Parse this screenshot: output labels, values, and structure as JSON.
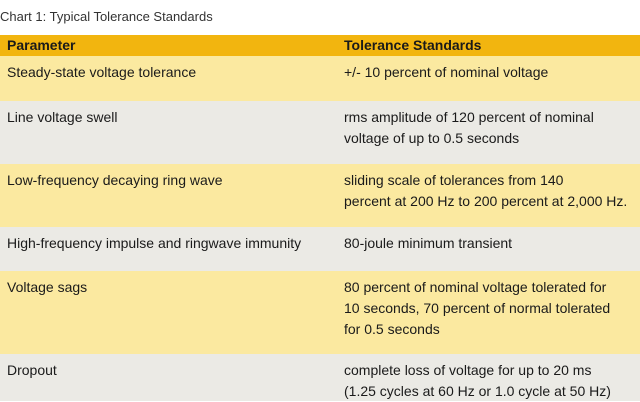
{
  "caption": "Chart 1: Typical Tolerance Standards",
  "header": {
    "parameter": "Parameter",
    "standards": "Tolerance Standards"
  },
  "rows": [
    {
      "parameter": "Steady-state voltage tolerance",
      "standards": [
        "+/- 10 percent of nominal voltage"
      ]
    },
    {
      "parameter": "Line voltage swell",
      "standards": [
        "rms amplitude of 120 percent of nominal",
        "voltage of up to 0.5 seconds"
      ]
    },
    {
      "parameter": "Low-frequency decaying ring wave",
      "standards": [
        "sliding scale of tolerances from 140",
        "percent at 200 Hz to 200 percent at 2,000 Hz."
      ]
    },
    {
      "parameter": "High-frequency impulse and ringwave immunity",
      "standards": [
        "80-joule minimum transient"
      ]
    },
    {
      "parameter": "Voltage sags",
      "standards": [
        "80 percent of nominal voltage tolerated for",
        "10  seconds, 70 percent of normal tolerated",
        "for 0.5 seconds"
      ]
    },
    {
      "parameter": "Dropout",
      "standards": [
        "complete loss of voltage for up to 20 ms",
        "(1.25 cycles at 60 Hz or 1.0 cycle at 50 Hz)"
      ]
    }
  ],
  "colors": {
    "header": "#f2b50f",
    "row_yellow": "#fbe9a0",
    "row_grey": "#ebeae5"
  }
}
